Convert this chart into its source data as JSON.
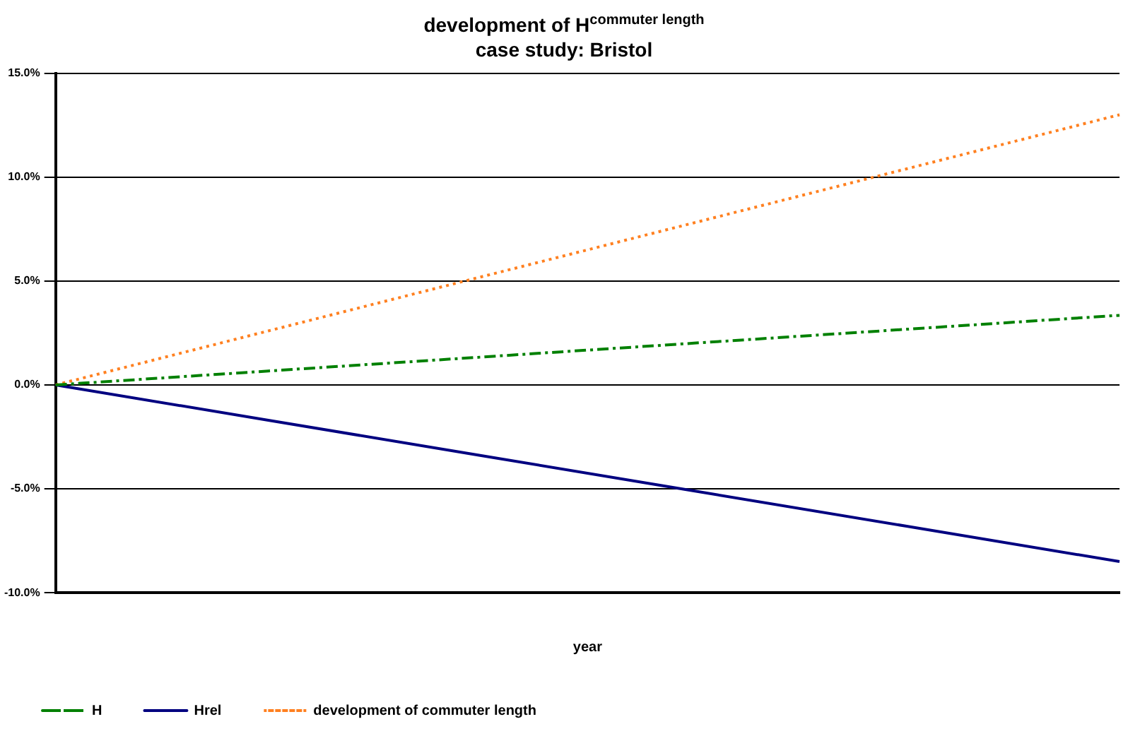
{
  "chart_data": {
    "type": "line",
    "title": "development of H$^{commuter length}$",
    "subtitle": "case study: Bristol",
    "xlabel": "year",
    "categories": [
      null,
      null,
      null,
      null,
      null,
      null
    ],
    "series": [
      {
        "name": "H",
        "color": "#008000",
        "line_style": "dashdot",
        "values": [
          0,
          0.67,
          1.34,
          2.01,
          2.68,
          3.35
        ]
      },
      {
        "name": "Hrel",
        "color": "#000080",
        "line_style": "solid",
        "values": [
          0,
          -1.7,
          -3.4,
          -5.1,
          -6.8,
          -8.5
        ]
      },
      {
        "name": "development of commuter length",
        "color": "#ff8020",
        "line_style": "dotted",
        "values": [
          0,
          2.6,
          5.2,
          7.8,
          10.4,
          13.0
        ]
      }
    ],
    "ylim": [
      -10,
      15
    ],
    "yticks": [
      {
        "value": -10,
        "label": "-10.0%"
      },
      {
        "value": -5,
        "label": "-5.0%"
      },
      {
        "value": 0,
        "label": "0.0%"
      },
      {
        "value": 5,
        "label": "5.0%"
      },
      {
        "value": 10,
        "label": "10.0%"
      },
      {
        "value": 15,
        "label": "15.0%"
      }
    ],
    "grid": "y",
    "legend": "bottom left",
    "marker": "none"
  }
}
